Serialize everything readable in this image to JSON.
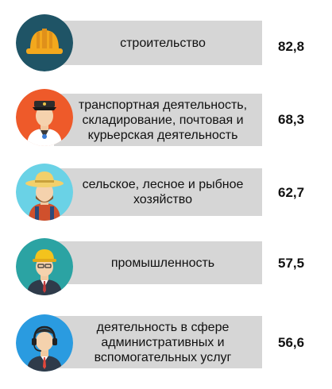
{
  "items": [
    {
      "label": "строительство",
      "value": "82,8",
      "icon": "hard-hat-icon",
      "color": "#1f5466"
    },
    {
      "label": "транспортная деятельность, складирование, почтовая и курьерская деятельность",
      "value": "68,3",
      "icon": "courier-worker-icon",
      "color": "#ee5a2a"
    },
    {
      "label": "сельское, лесное и рыбное хозяйство",
      "value": "62,7",
      "icon": "farmer-icon",
      "color": "#6ad2e6"
    },
    {
      "label": "промышленность",
      "value": "57,5",
      "icon": "engineer-icon",
      "color": "#2ba3a3"
    },
    {
      "label": "деятельность в сфере административных и вспомогательных услуг",
      "value": "56,6",
      "icon": "support-operator-icon",
      "color": "#2a9be0"
    }
  ]
}
